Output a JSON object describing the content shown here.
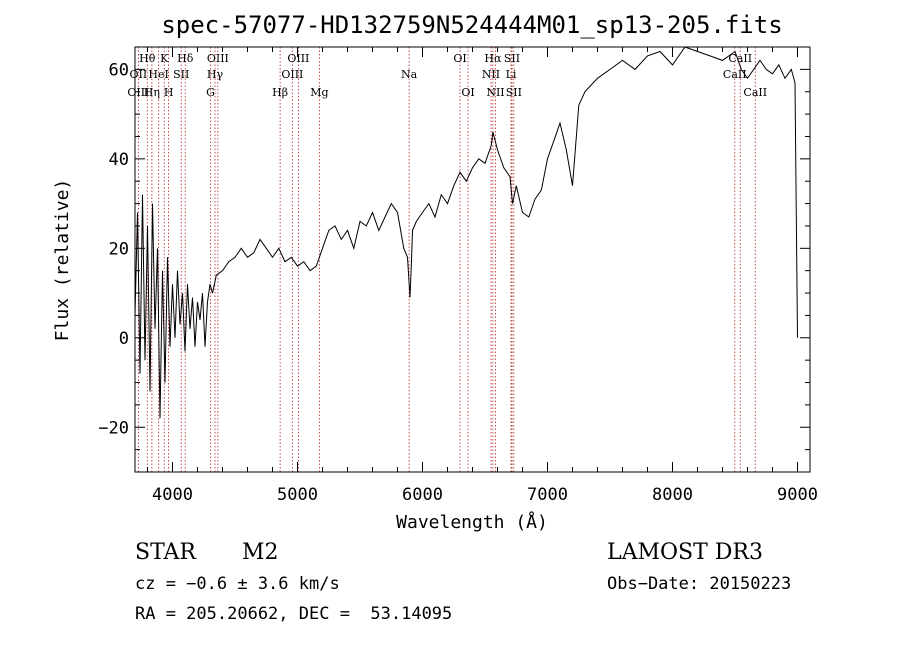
{
  "chart_data": {
    "type": "line",
    "title": "spec-57077-HD132759N524444M01_sp13-205.fits",
    "xlabel": "Wavelength (Å)",
    "ylabel": "Flux (relative)",
    "xlim": [
      3700,
      9100
    ],
    "ylim": [
      -30,
      65
    ],
    "xticks": [
      4000,
      5000,
      6000,
      7000,
      8000,
      9000
    ],
    "yticks": [
      -20,
      0,
      20,
      40,
      60
    ],
    "series": [
      {
        "name": "flux",
        "x": [
          3700,
          3720,
          3740,
          3760,
          3780,
          3800,
          3820,
          3840,
          3860,
          3880,
          3900,
          3920,
          3940,
          3960,
          3980,
          4000,
          4020,
          4040,
          4060,
          4080,
          4100,
          4120,
          4140,
          4160,
          4180,
          4200,
          4220,
          4240,
          4260,
          4280,
          4300,
          4320,
          4350,
          4400,
          4450,
          4500,
          4550,
          4600,
          4650,
          4700,
          4750,
          4800,
          4850,
          4900,
          4950,
          5000,
          5050,
          5100,
          5150,
          5200,
          5250,
          5300,
          5350,
          5400,
          5450,
          5500,
          5550,
          5600,
          5650,
          5700,
          5750,
          5800,
          5850,
          5880,
          5900,
          5910,
          5920,
          5950,
          6000,
          6050,
          6100,
          6150,
          6200,
          6250,
          6300,
          6350,
          6400,
          6450,
          6500,
          6550,
          6563,
          6600,
          6650,
          6700,
          6720,
          6750,
          6800,
          6850,
          6900,
          6950,
          7000,
          7050,
          7100,
          7150,
          7200,
          7250,
          7300,
          7400,
          7500,
          7600,
          7700,
          7800,
          7900,
          8000,
          8100,
          8200,
          8300,
          8400,
          8500,
          8550,
          8600,
          8700,
          8750,
          8800,
          8850,
          8900,
          8950,
          8980,
          9000
        ],
        "y": [
          5,
          28,
          -8,
          32,
          -5,
          25,
          -12,
          30,
          2,
          20,
          -18,
          15,
          -10,
          18,
          -2,
          12,
          0,
          15,
          3,
          10,
          -3,
          12,
          2,
          9,
          -2,
          8,
          4,
          10,
          -2,
          8,
          12,
          10,
          14,
          15,
          17,
          18,
          20,
          18,
          19,
          22,
          20,
          18,
          20,
          17,
          18,
          16,
          17,
          15,
          16,
          20,
          24,
          25,
          22,
          24,
          20,
          26,
          25,
          28,
          24,
          27,
          30,
          28,
          20,
          18,
          9,
          16,
          24,
          26,
          28,
          30,
          27,
          32,
          30,
          34,
          37,
          35,
          38,
          40,
          39,
          43,
          46,
          42,
          38,
          36,
          30,
          34,
          28,
          27,
          31,
          33,
          40,
          44,
          48,
          42,
          34,
          52,
          55,
          58,
          60,
          62,
          60,
          63,
          64,
          61,
          65,
          64,
          63,
          62,
          64,
          60,
          58,
          62,
          60,
          59,
          61,
          58,
          60,
          57,
          0
        ]
      }
    ],
    "line_labels": [
      {
        "label": "Hθ",
        "x": 3798,
        "row": 1
      },
      {
        "label": "OII",
        "x": 3727,
        "row": 2
      },
      {
        "label": "OIII",
        "x": 3727,
        "row": 3
      },
      {
        "label": "K",
        "x": 3934,
        "row": 1
      },
      {
        "label": "HeI",
        "x": 3889,
        "row": 2
      },
      {
        "label": "Hη",
        "x": 3835,
        "row": 3
      },
      {
        "label": "Hδ",
        "x": 4102,
        "row": 1
      },
      {
        "label": "SII",
        "x": 4070,
        "row": 2
      },
      {
        "label": "H",
        "x": 3969,
        "row": 3
      },
      {
        "label": "OIII",
        "x": 4363,
        "row": 1
      },
      {
        "label": "Hγ",
        "x": 4340,
        "row": 2
      },
      {
        "label": "G",
        "x": 4304,
        "row": 3
      },
      {
        "label": "OIII",
        "x": 5007,
        "row": 1
      },
      {
        "label": "OIII",
        "x": 4959,
        "row": 2
      },
      {
        "label": "Hβ",
        "x": 4861,
        "row": 3
      },
      {
        "label": "Mg",
        "x": 5175,
        "row": 3
      },
      {
        "label": "Na",
        "x": 5893,
        "row": 2
      },
      {
        "label": "OI",
        "x": 6300,
        "row": 1
      },
      {
        "label": "OI",
        "x": 6364,
        "row": 3
      },
      {
        "label": "Hα",
        "x": 6563,
        "row": 1
      },
      {
        "label": "SII",
        "x": 6716,
        "row": 1
      },
      {
        "label": "NII",
        "x": 6548,
        "row": 2
      },
      {
        "label": "Li",
        "x": 6708,
        "row": 2
      },
      {
        "label": "NII",
        "x": 6584,
        "row": 3
      },
      {
        "label": "SII",
        "x": 6731,
        "row": 3
      },
      {
        "label": "CaII",
        "x": 8542,
        "row": 1
      },
      {
        "label": "CaII",
        "x": 8498,
        "row": 2
      },
      {
        "label": "CaII",
        "x": 8662,
        "row": 3
      }
    ],
    "line_markers": [
      3727,
      3798,
      3835,
      3889,
      3934,
      3969,
      4070,
      4102,
      4304,
      4340,
      4363,
      4861,
      4959,
      5007,
      5175,
      5893,
      6300,
      6364,
      6548,
      6563,
      6584,
      6708,
      6716,
      6731,
      8498,
      8542,
      8662
    ],
    "colors": {
      "spectrum": "#000000",
      "marker": "#b22222",
      "axes": "#000000"
    }
  },
  "info": {
    "object_class": "STAR",
    "subclass": "M2",
    "survey": "LAMOST DR3",
    "cz": "cz = −0.6 ± 3.6 km/s",
    "obs_date": "Obs−Date: 20150223",
    "coords": "RA = 205.20662, DEC =  53.14095"
  }
}
